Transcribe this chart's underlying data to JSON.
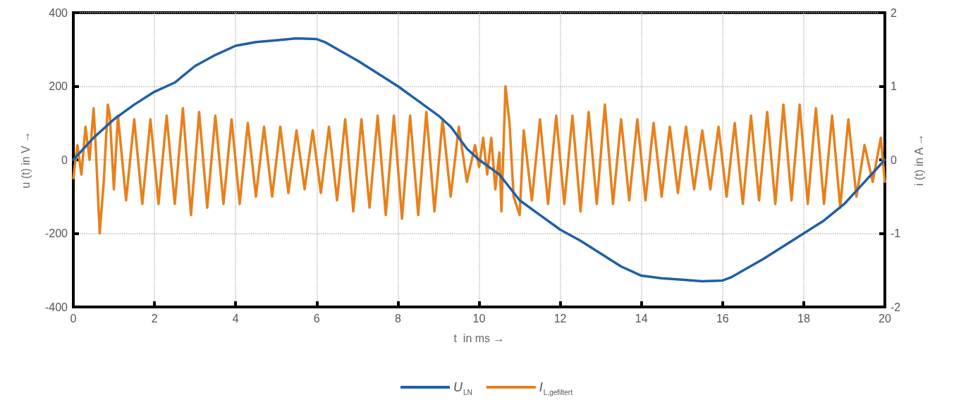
{
  "chart_data": {
    "type": "line",
    "xlabel": "t  in ms →",
    "ylabel": "u (t) in V →",
    "y2label": "i (t) in A →",
    "xlim": [
      0,
      20
    ],
    "xticks": [
      0,
      2,
      4,
      6,
      8,
      10,
      12,
      14,
      16,
      18,
      20
    ],
    "ylim": [
      -400,
      400
    ],
    "yticks": [
      -400,
      -200,
      0,
      200,
      400
    ],
    "y2lim": [
      -2,
      2
    ],
    "y2ticks": [
      -2,
      -1,
      0,
      1,
      2
    ],
    "grid": true,
    "legend": "bottom",
    "marker": "none",
    "line_style": "solid",
    "series": [
      {
        "name": "U$_{LN}$",
        "color": "#1f5fa8",
        "x": [
          0,
          0.5,
          1,
          1.5,
          2,
          2.5,
          3,
          3.5,
          4,
          4.5,
          5,
          5.5,
          6,
          6.2,
          7,
          8,
          8.5,
          9,
          9.3,
          9.7,
          10,
          10.5,
          11,
          11.5,
          12,
          12.5,
          13,
          13.5,
          14,
          14.5,
          15,
          15.5,
          16,
          16.2,
          17,
          18,
          18.5,
          19,
          19.5,
          20
        ],
        "values": [
          0,
          60,
          110,
          150,
          185,
          210,
          255,
          285,
          310,
          320,
          325,
          330,
          328,
          320,
          270,
          200,
          160,
          120,
          90,
          30,
          0,
          -40,
          -110,
          -150,
          -190,
          -220,
          -255,
          -290,
          -315,
          -322,
          -326,
          -330,
          -328,
          -320,
          -270,
          -200,
          -165,
          -120,
          -60,
          0
        ]
      },
      {
        "name": "I$_{L,gefiltert}$",
        "color": "#e8801a",
        "axis": "y2",
        "x": [
          0,
          0.1,
          0.2,
          0.3,
          0.4,
          0.5,
          0.55,
          0.65,
          0.75,
          0.85,
          0.9,
          1.0,
          1.1,
          1.3,
          1.5,
          1.7,
          1.9,
          2.1,
          2.3,
          2.5,
          2.7,
          2.9,
          3.1,
          3.3,
          3.5,
          3.7,
          3.9,
          4.1,
          4.3,
          4.5,
          4.7,
          4.9,
          5.1,
          5.3,
          5.5,
          5.7,
          5.9,
          6.1,
          6.3,
          6.5,
          6.7,
          6.9,
          7.1,
          7.3,
          7.5,
          7.7,
          7.9,
          8.1,
          8.3,
          8.5,
          8.7,
          8.9,
          9.1,
          9.3,
          9.5,
          9.7,
          9.9,
          10.0,
          10.1,
          10.2,
          10.3,
          10.4,
          10.5,
          10.55,
          10.65,
          10.75,
          10.85,
          11.0,
          11.1,
          11.3,
          11.5,
          11.7,
          11.9,
          12.1,
          12.3,
          12.5,
          12.7,
          12.9,
          13.1,
          13.3,
          13.5,
          13.7,
          13.9,
          14.1,
          14.3,
          14.5,
          14.7,
          14.9,
          15.1,
          15.3,
          15.5,
          15.7,
          15.9,
          16.1,
          16.3,
          16.5,
          16.7,
          16.9,
          17.1,
          17.3,
          17.5,
          17.7,
          17.9,
          18.1,
          18.3,
          18.5,
          18.7,
          18.9,
          19.1,
          19.3,
          19.5,
          19.7,
          19.9,
          20
        ],
        "values": [
          -0.25,
          0.2,
          -0.2,
          0.45,
          0,
          0.7,
          0.2,
          -1.0,
          -0.3,
          0.75,
          0.6,
          -0.4,
          0.6,
          -0.55,
          0.55,
          -0.6,
          0.55,
          -0.6,
          0.6,
          -0.6,
          0.7,
          -0.75,
          0.65,
          -0.65,
          0.6,
          -0.6,
          0.55,
          -0.6,
          0.5,
          -0.5,
          0.45,
          -0.5,
          0.45,
          -0.45,
          0.4,
          -0.4,
          0.4,
          -0.45,
          0.45,
          -0.55,
          0.55,
          -0.7,
          0.55,
          -0.65,
          0.6,
          -0.75,
          0.6,
          -0.8,
          0.6,
          -0.75,
          0.65,
          -0.7,
          0.55,
          -0.5,
          0.45,
          -0.3,
          0.2,
          -0.1,
          0.3,
          -0.2,
          0.3,
          -0.4,
          0.1,
          -0.7,
          1.0,
          0.5,
          -0.5,
          -0.75,
          0.4,
          -0.55,
          0.55,
          -0.6,
          0.6,
          -0.6,
          0.6,
          -0.7,
          0.65,
          -0.6,
          0.75,
          -0.6,
          0.55,
          -0.55,
          0.55,
          -0.55,
          0.5,
          -0.5,
          0.45,
          -0.45,
          0.45,
          -0.4,
          0.4,
          -0.4,
          0.45,
          -0.5,
          0.5,
          -0.6,
          0.6,
          -0.55,
          0.65,
          -0.6,
          0.75,
          -0.55,
          0.75,
          -0.6,
          0.7,
          -0.6,
          0.6,
          -0.65,
          0.55,
          -0.5,
          0.2,
          -0.3,
          0.3,
          -0.3
        ]
      }
    ]
  }
}
